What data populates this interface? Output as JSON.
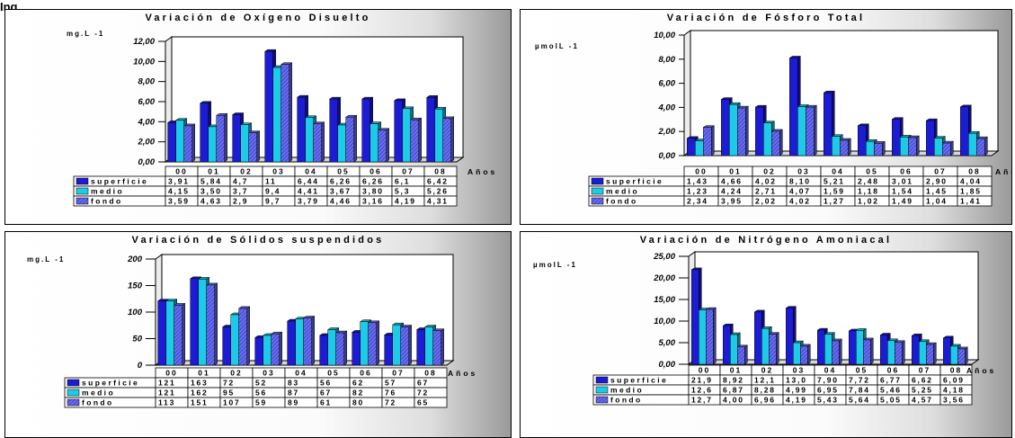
{
  "corner_label": "Ing",
  "colors": {
    "superficie": "#1c1cd4",
    "medio": "#1ecbe6",
    "fondo": "#6a6ef0",
    "hatch": "#2a2ab0"
  },
  "chart_data": [
    {
      "type": "bar",
      "title": "Variación de Oxígeno Disuelto",
      "ylabel": "mg.L -1",
      "xlabel": "Años",
      "categories": [
        "00",
        "01",
        "02",
        "03",
        "04",
        "05",
        "06",
        "07",
        "08"
      ],
      "ylim": [
        0,
        12
      ],
      "ytick_labels": [
        "0,00",
        "2,00",
        "4,00",
        "6,00",
        "8,00",
        "10,00",
        "12,00"
      ],
      "series": [
        {
          "name": "superficie",
          "values": [
            3.91,
            5.84,
            4.7,
            11,
            6.44,
            6.26,
            6.26,
            6.1,
            6.42
          ],
          "labels": [
            "3,91",
            "5,84",
            "4,7",
            "11",
            "6,44",
            "6,26",
            "6,26",
            "6,1",
            "6,42"
          ]
        },
        {
          "name": "medio",
          "values": [
            4.15,
            3.5,
            3.7,
            9.4,
            4.41,
            3.67,
            3.8,
            5.3,
            5.26
          ],
          "labels": [
            "4,15",
            "3,50",
            "3,7",
            "9,4",
            "4,41",
            "3,67",
            "3,80",
            "5,3",
            "5,26"
          ]
        },
        {
          "name": "fondo",
          "values": [
            3.59,
            4.63,
            2.9,
            9.7,
            3.79,
            4.46,
            3.16,
            4.19,
            4.31
          ],
          "labels": [
            "3,59",
            "4,63",
            "2,9",
            "9,7",
            "3,79",
            "4,46",
            "3,16",
            "4,19",
            "4,31"
          ]
        }
      ]
    },
    {
      "type": "bar",
      "title": "Variación de Fósforo Total",
      "ylabel": "µmolL -1",
      "xlabel": "Años",
      "categories": [
        "00",
        "01",
        "02",
        "03",
        "04",
        "05",
        "06",
        "07",
        "08"
      ],
      "ylim": [
        0,
        10
      ],
      "ytick_labels": [
        "0,00",
        "2,00",
        "4,00",
        "6,00",
        "8,00",
        "10,00"
      ],
      "series": [
        {
          "name": "superficie",
          "values": [
            1.43,
            4.66,
            4.02,
            8.1,
            5.21,
            2.48,
            3.01,
            2.9,
            4.04
          ],
          "labels": [
            "1,43",
            "4,66",
            "4,02",
            "8,10",
            "5,21",
            "2,48",
            "3,01",
            "2,90",
            "4,04"
          ]
        },
        {
          "name": "medio",
          "values": [
            1.23,
            4.24,
            2.71,
            4.07,
            1.59,
            1.18,
            1.54,
            1.45,
            1.85
          ],
          "labels": [
            "1,23",
            "4,24",
            "2,71",
            "4,07",
            "1,59",
            "1,18",
            "1,54",
            "1,45",
            "1,85"
          ]
        },
        {
          "name": "fondo",
          "values": [
            2.34,
            3.95,
            2.02,
            4.02,
            1.27,
            1.02,
            1.49,
            1.04,
            1.41
          ],
          "labels": [
            "2,34",
            "3,95",
            "2,02",
            "4,02",
            "1,27",
            "1,02",
            "1,49",
            "1,04",
            "1,41"
          ]
        }
      ]
    },
    {
      "type": "bar",
      "title": "Variación de Sólidos suspendidos",
      "ylabel": "mg.L -1",
      "xlabel": "Años",
      "categories": [
        "00",
        "01",
        "02",
        "03",
        "04",
        "05",
        "06",
        "07",
        "08"
      ],
      "ylim": [
        0,
        200
      ],
      "ytick_labels": [
        "0",
        "50",
        "100",
        "150",
        "200"
      ],
      "series": [
        {
          "name": "superficie",
          "values": [
            121,
            163,
            72,
            52,
            83,
            56,
            62,
            57,
            67
          ],
          "labels": [
            "121",
            "163",
            "72",
            "52",
            "83",
            "56",
            "62",
            "57",
            "67"
          ]
        },
        {
          "name": "medio",
          "values": [
            121,
            162,
            95,
            56,
            87,
            67,
            82,
            76,
            72
          ],
          "labels": [
            "121",
            "162",
            "95",
            "56",
            "87",
            "67",
            "82",
            "76",
            "72"
          ]
        },
        {
          "name": "fondo",
          "values": [
            113,
            151,
            107,
            59,
            89,
            61,
            80,
            72,
            65
          ],
          "labels": [
            "113",
            "151",
            "107",
            "59",
            "89",
            "61",
            "80",
            "72",
            "65"
          ]
        }
      ]
    },
    {
      "type": "bar",
      "title": "Variación de Nitrógeno Amoniacal",
      "ylabel": "µmolL -1",
      "xlabel": "Años",
      "categories": [
        "00",
        "01",
        "02",
        "03",
        "04",
        "05",
        "06",
        "07",
        "08"
      ],
      "ylim": [
        0,
        25
      ],
      "ytick_labels": [
        "0,00",
        "5,00",
        "10,00",
        "15,00",
        "20,00",
        "25,00"
      ],
      "series": [
        {
          "name": "superficie",
          "values": [
            21.9,
            8.92,
            12.1,
            13.0,
            7.9,
            7.72,
            6.77,
            6.62,
            6.09
          ],
          "labels": [
            "21,9",
            "8,92",
            "12,1",
            "13,0",
            "7,90",
            "7,72",
            "6,77",
            "6,62",
            "6,09"
          ]
        },
        {
          "name": "medio",
          "values": [
            12.6,
            6.87,
            8.28,
            4.99,
            6.95,
            7.84,
            5.46,
            5.25,
            4.18
          ],
          "labels": [
            "12,6",
            "6,87",
            "8,28",
            "4,99",
            "6,95",
            "7,84",
            "5,46",
            "5,25",
            "4,18"
          ]
        },
        {
          "name": "fondo",
          "values": [
            12.7,
            4.0,
            6.96,
            4.19,
            5.43,
            5.64,
            5.05,
            4.57,
            3.56
          ],
          "labels": [
            "12,7",
            "4,00",
            "6,96",
            "4,19",
            "5,43",
            "5,64",
            "5,05",
            "4,57",
            "3,56"
          ]
        }
      ]
    }
  ]
}
